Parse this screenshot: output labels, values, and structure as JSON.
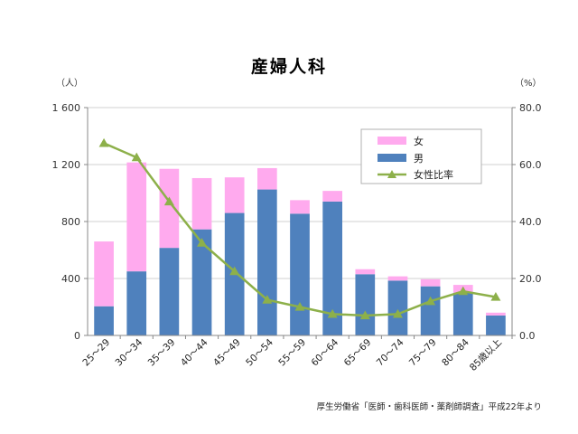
{
  "chart_data": {
    "type": "bar",
    "title": "産婦人科",
    "left_unit": "（人）",
    "right_unit": "（%）",
    "left_ylim": [
      0,
      1600
    ],
    "left_ticks": [
      "0",
      "400",
      "800",
      "1 200",
      "1 600"
    ],
    "right_ylim": [
      0,
      80
    ],
    "right_ticks": [
      "0.0",
      "20.0",
      "40.0",
      "60.0",
      "80.0"
    ],
    "categories": [
      "25～29",
      "30～34",
      "35～39",
      "40～44",
      "45～49",
      "50～54",
      "55～59",
      "60～64",
      "65～69",
      "70～74",
      "75～79",
      "80～84",
      "85歳以上"
    ],
    "series": [
      {
        "name": "男",
        "kind": "bar",
        "axis": "left",
        "values": [
          205,
          450,
          615,
          745,
          860,
          1025,
          855,
          940,
          430,
          385,
          345,
          300,
          140
        ]
      },
      {
        "name": "女",
        "kind": "bar",
        "axis": "left",
        "values": [
          455,
          765,
          555,
          360,
          250,
          150,
          95,
          75,
          35,
          30,
          50,
          55,
          20
        ]
      },
      {
        "name": "女性比率",
        "kind": "line",
        "axis": "right",
        "values": [
          67.5,
          62.5,
          47.0,
          32.5,
          22.5,
          12.5,
          10.0,
          7.5,
          7.0,
          7.5,
          12.0,
          15.5,
          13.5
        ]
      }
    ],
    "legend": {
      "position": "top-right",
      "items": [
        "女",
        "男",
        "女性比率"
      ]
    },
    "colors": {
      "male": "#4F81BD",
      "female": "#FFAAEE",
      "ratio": "#8DB04A"
    },
    "grid": true
  },
  "source_note": "厚生労働省「医師・歯科医師・薬剤師調査」平成22年より"
}
